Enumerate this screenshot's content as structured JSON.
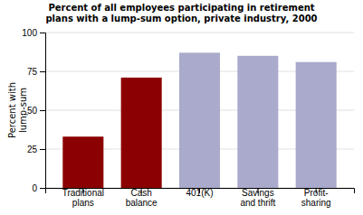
{
  "chart_data": {
    "type": "bar",
    "title": "Percent of all employees participating in retirement\nplans with a lump-sum option, private industry, 2000",
    "categories": [
      "Traditional\nplans",
      "Cash\nbalance",
      "401(K)",
      "Savings\nand thrift",
      "Profit-\nsharing"
    ],
    "values": [
      33,
      71,
      87,
      85,
      81
    ],
    "colors": [
      "#8B0000",
      "#8B0000",
      "#AAAACC",
      "#AAAACC",
      "#AAAACC"
    ],
    "ylabel": "Percent with\nlump-sum",
    "ylim": [
      0,
      100
    ],
    "yticks": [
      0,
      25,
      50,
      75,
      100
    ],
    "grid": true
  }
}
